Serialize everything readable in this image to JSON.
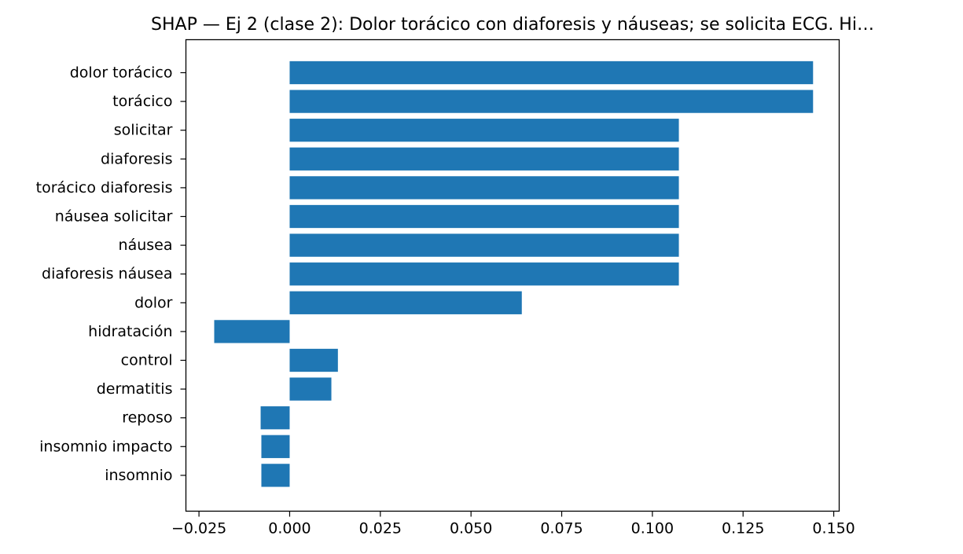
{
  "chart_data": {
    "type": "bar",
    "orientation": "horizontal",
    "title": "SHAP — Ej 2 (clase 2): Dolor torácico con diaforesis y náuseas; se solicita ECG. Hi…",
    "xlabel": "",
    "ylabel": "",
    "categories": [
      "dolor torácico",
      "torácico",
      "solicitar",
      "diaforesis",
      "torácico diaforesis",
      "náusea solicitar",
      "náusea",
      "diaforesis náusea",
      "dolor",
      "hidratación",
      "control",
      "dermatitis",
      "reposo",
      "insomnio impacto",
      "insomnio"
    ],
    "values": [
      0.1443,
      0.1443,
      0.1073,
      0.1073,
      0.1073,
      0.1073,
      0.1073,
      0.1073,
      0.064,
      -0.0208,
      0.0133,
      0.0115,
      -0.008,
      -0.0078,
      -0.0078
    ],
    "xlim": [
      -0.0286,
      0.1515
    ],
    "xticks": [
      -0.025,
      0.0,
      0.025,
      0.05,
      0.075,
      0.1,
      0.125,
      0.15
    ],
    "xtick_labels": [
      "−0.025",
      "0.000",
      "0.025",
      "0.050",
      "0.075",
      "0.100",
      "0.125",
      "0.150"
    ],
    "bar_color": "#1f77b4",
    "grid": false,
    "legend": "none"
  }
}
